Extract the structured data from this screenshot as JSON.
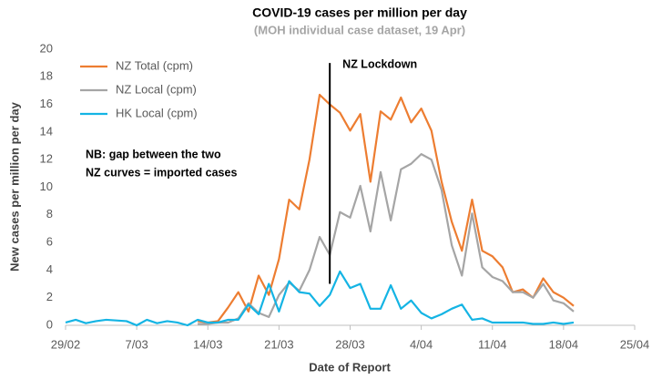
{
  "chart_data": {
    "type": "line",
    "title": "COVID-19 cases per million per day",
    "subtitle": "(MOH individual case dataset, 19 Apr)",
    "x_label": "Date of Report",
    "y_label": "New cases per million per day",
    "x": [
      0,
      1,
      2,
      3,
      4,
      5,
      6,
      7,
      8,
      9,
      10,
      11,
      12,
      13,
      14,
      15,
      16,
      17,
      18,
      19,
      20,
      21,
      22,
      23,
      24,
      25,
      26,
      27,
      28,
      29,
      30,
      31,
      32,
      33,
      34,
      35,
      36,
      37,
      38,
      39,
      40,
      41,
      42,
      43,
      44,
      45,
      46,
      47,
      48,
      49,
      50
    ],
    "series": [
      {
        "name": "NZ Total (cpm)",
        "color": "#ed7d31",
        "values": [
          null,
          null,
          null,
          null,
          null,
          null,
          null,
          null,
          null,
          null,
          null,
          null,
          null,
          0.3,
          0.2,
          0.3,
          1.3,
          2.4,
          1.0,
          3.6,
          2.2,
          4.8,
          9.1,
          8.4,
          12.0,
          16.7,
          16.0,
          15.4,
          14.1,
          15.3,
          10.4,
          15.5,
          14.9,
          16.5,
          14.7,
          15.7,
          14.1,
          10.4,
          7.5,
          5.4,
          9.1,
          5.4,
          5.0,
          4.2,
          2.4,
          2.6,
          2.0,
          3.4,
          2.4,
          2.0,
          1.4
        ]
      },
      {
        "name": "NZ Local (cpm)",
        "color": "#a5a5a5",
        "values": [
          null,
          null,
          null,
          null,
          null,
          null,
          null,
          null,
          null,
          null,
          null,
          null,
          null,
          0.1,
          0.1,
          0.2,
          0.2,
          0.5,
          1.6,
          0.9,
          0.6,
          2.2,
          3.1,
          2.5,
          4.0,
          6.4,
          5.1,
          8.2,
          7.8,
          10.1,
          6.8,
          11.1,
          7.6,
          11.3,
          11.7,
          12.4,
          12.0,
          9.8,
          5.8,
          3.6,
          8.1,
          4.2,
          3.5,
          3.2,
          2.4,
          2.4,
          2.0,
          3.0,
          1.8,
          1.6,
          1.0
        ]
      },
      {
        "name": "HK Local (cpm)",
        "color": "#14b4e4",
        "values": [
          0.2,
          0.4,
          0.15,
          0.3,
          0.4,
          0.35,
          0.3,
          0.0,
          0.4,
          0.15,
          0.3,
          0.2,
          0.0,
          0.4,
          0.2,
          0.2,
          0.4,
          0.4,
          1.5,
          0.8,
          3.0,
          1.0,
          3.2,
          2.4,
          2.3,
          1.4,
          2.2,
          3.9,
          2.7,
          3.0,
          1.2,
          1.2,
          2.9,
          1.2,
          1.8,
          0.9,
          0.5,
          0.8,
          1.2,
          1.5,
          0.4,
          0.5,
          0.2,
          0.2,
          0.2,
          0.2,
          0.1,
          0.1,
          0.2,
          0.1,
          0.2
        ]
      }
    ],
    "xlim": [
      0,
      56
    ],
    "xticks": [
      {
        "value": 0,
        "label": "29/02"
      },
      {
        "value": 7,
        "label": "7/03"
      },
      {
        "value": 14,
        "label": "14/03"
      },
      {
        "value": 21,
        "label": "21/03"
      },
      {
        "value": 28,
        "label": "28/03"
      },
      {
        "value": 35,
        "label": "4/04"
      },
      {
        "value": 42,
        "label": "11/04"
      },
      {
        "value": 49,
        "label": "18/04"
      },
      {
        "value": 56,
        "label": "25/04"
      }
    ],
    "ylim": [
      0,
      20
    ],
    "yticks": [
      0,
      2,
      4,
      6,
      8,
      10,
      12,
      14,
      16,
      18,
      20
    ],
    "legend": "top-left",
    "lockdown": {
      "label": "NZ Lockdown",
      "x": 26,
      "y": [
        3,
        19
      ]
    },
    "note": [
      "NB: gap between the two",
      "NZ curves = imported cases"
    ]
  }
}
